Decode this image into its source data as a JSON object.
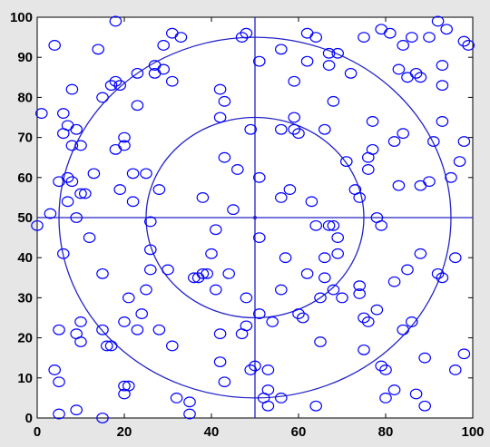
{
  "chart_data": {
    "type": "scatter",
    "title": "",
    "xlabel": "",
    "ylabel": "",
    "xlim": [
      0,
      100
    ],
    "ylim": [
      0,
      100
    ],
    "xticks": [
      "0",
      "20",
      "40",
      "60",
      "80",
      "100"
    ],
    "yticks": [
      "0",
      "10",
      "20",
      "30",
      "40",
      "50",
      "60",
      "70",
      "80",
      "90",
      "100"
    ],
    "grid": false,
    "marker": "open-circle",
    "colors": {
      "marker": "#0000ff",
      "reference": "#2323c8",
      "axes_background": "#ffffff",
      "figure_background": "#e6e6e6"
    },
    "reference": {
      "center": [
        50,
        50
      ],
      "crosshair_x": 50,
      "crosshair_y": 50,
      "circle_radii": [
        25,
        45
      ]
    },
    "points": [
      [
        0,
        48
      ],
      [
        1,
        76
      ],
      [
        3,
        51
      ],
      [
        4,
        93
      ],
      [
        4,
        12
      ],
      [
        5,
        9
      ],
      [
        5,
        1
      ],
      [
        5,
        59
      ],
      [
        5,
        22
      ],
      [
        6,
        41
      ],
      [
        6,
        76
      ],
      [
        6,
        71
      ],
      [
        7,
        60
      ],
      [
        7,
        73
      ],
      [
        7,
        54
      ],
      [
        8,
        82
      ],
      [
        8,
        68
      ],
      [
        8,
        59
      ],
      [
        9,
        72
      ],
      [
        9,
        50
      ],
      [
        9,
        2
      ],
      [
        9,
        21
      ],
      [
        10,
        24
      ],
      [
        10,
        19
      ],
      [
        10,
        56
      ],
      [
        10,
        68
      ],
      [
        11,
        56
      ],
      [
        12,
        45
      ],
      [
        13,
        61
      ],
      [
        14,
        92
      ],
      [
        15,
        22
      ],
      [
        15,
        36
      ],
      [
        15,
        80
      ],
      [
        15,
        0
      ],
      [
        16,
        18
      ],
      [
        17,
        83
      ],
      [
        17,
        18
      ],
      [
        18,
        84
      ],
      [
        18,
        67
      ],
      [
        18,
        99
      ],
      [
        19,
        83
      ],
      [
        19,
        57
      ],
      [
        20,
        68
      ],
      [
        20,
        70
      ],
      [
        20,
        24
      ],
      [
        20,
        8
      ],
      [
        20,
        6
      ],
      [
        21,
        8
      ],
      [
        21,
        30
      ],
      [
        22,
        61
      ],
      [
        22,
        54
      ],
      [
        23,
        78
      ],
      [
        23,
        86
      ],
      [
        23,
        22
      ],
      [
        24,
        26
      ],
      [
        25,
        32
      ],
      [
        25,
        61
      ],
      [
        26,
        49
      ],
      [
        26,
        37
      ],
      [
        26,
        42
      ],
      [
        27,
        86
      ],
      [
        27,
        88
      ],
      [
        28,
        22
      ],
      [
        28,
        57
      ],
      [
        29,
        87
      ],
      [
        29,
        93
      ],
      [
        30,
        37
      ],
      [
        31,
        84
      ],
      [
        31,
        96
      ],
      [
        31,
        18
      ],
      [
        32,
        5
      ],
      [
        33,
        95
      ],
      [
        35,
        1
      ],
      [
        35,
        4
      ],
      [
        36,
        35
      ],
      [
        37,
        35
      ],
      [
        38,
        55
      ],
      [
        38,
        36
      ],
      [
        39,
        36
      ],
      [
        40,
        41
      ],
      [
        41,
        32
      ],
      [
        41,
        47
      ],
      [
        42,
        82
      ],
      [
        42,
        75
      ],
      [
        42,
        21
      ],
      [
        42,
        14
      ],
      [
        43,
        65
      ],
      [
        43,
        79
      ],
      [
        43,
        9
      ],
      [
        44,
        36
      ],
      [
        45,
        52
      ],
      [
        46,
        62
      ],
      [
        47,
        95
      ],
      [
        47,
        21
      ],
      [
        48,
        30
      ],
      [
        48,
        96
      ],
      [
        48,
        23
      ],
      [
        49,
        72
      ],
      [
        49,
        12
      ],
      [
        50,
        13
      ],
      [
        51,
        45
      ],
      [
        51,
        26
      ],
      [
        51,
        60
      ],
      [
        51,
        89
      ],
      [
        52,
        5
      ],
      [
        53,
        7
      ],
      [
        53,
        3
      ],
      [
        53,
        12
      ],
      [
        54,
        24
      ],
      [
        56,
        72
      ],
      [
        56,
        92
      ],
      [
        56,
        55
      ],
      [
        56,
        32
      ],
      [
        56,
        5
      ],
      [
        57,
        40
      ],
      [
        58,
        57
      ],
      [
        59,
        75
      ],
      [
        59,
        72
      ],
      [
        59,
        84
      ],
      [
        60,
        71
      ],
      [
        60,
        26
      ],
      [
        61,
        25
      ],
      [
        62,
        36
      ],
      [
        62,
        89
      ],
      [
        62,
        96
      ],
      [
        63,
        54
      ],
      [
        64,
        48
      ],
      [
        64,
        95
      ],
      [
        64,
        3
      ],
      [
        65,
        30
      ],
      [
        65,
        19
      ],
      [
        66,
        72
      ],
      [
        66,
        35
      ],
      [
        66,
        40
      ],
      [
        67,
        48
      ],
      [
        67,
        88
      ],
      [
        67,
        91
      ],
      [
        68,
        79
      ],
      [
        68,
        48
      ],
      [
        68,
        32
      ],
      [
        69,
        41
      ],
      [
        69,
        45
      ],
      [
        69,
        91
      ],
      [
        70,
        30
      ],
      [
        71,
        64
      ],
      [
        72,
        86
      ],
      [
        73,
        57
      ],
      [
        74,
        31
      ],
      [
        74,
        55
      ],
      [
        74,
        33
      ],
      [
        75,
        25
      ],
      [
        75,
        17
      ],
      [
        75,
        95
      ],
      [
        76,
        62
      ],
      [
        76,
        24
      ],
      [
        76,
        65
      ],
      [
        77,
        67
      ],
      [
        77,
        74
      ],
      [
        78,
        50
      ],
      [
        78,
        27
      ],
      [
        79,
        48
      ],
      [
        79,
        97
      ],
      [
        79,
        13
      ],
      [
        80,
        12
      ],
      [
        80,
        5
      ],
      [
        81,
        96
      ],
      [
        82,
        69
      ],
      [
        82,
        7
      ],
      [
        82,
        34
      ],
      [
        83,
        87
      ],
      [
        83,
        58
      ],
      [
        84,
        22
      ],
      [
        84,
        71
      ],
      [
        84,
        93
      ],
      [
        85,
        37
      ],
      [
        85,
        85
      ],
      [
        86,
        95
      ],
      [
        86,
        24
      ],
      [
        87,
        6
      ],
      [
        87,
        86
      ],
      [
        88,
        85
      ],
      [
        88,
        41
      ],
      [
        88,
        58
      ],
      [
        89,
        3
      ],
      [
        89,
        15
      ],
      [
        90,
        59
      ],
      [
        90,
        95
      ],
      [
        91,
        69
      ],
      [
        92,
        99
      ],
      [
        92,
        36
      ],
      [
        93,
        35
      ],
      [
        93,
        74
      ],
      [
        94,
        97
      ],
      [
        95,
        60
      ],
      [
        96,
        12
      ],
      [
        96,
        40
      ],
      [
        97,
        64
      ],
      [
        98,
        16
      ],
      [
        98,
        94
      ],
      [
        98,
        69
      ],
      [
        99,
        93
      ],
      [
        93,
        83
      ],
      [
        93,
        88
      ]
    ]
  }
}
